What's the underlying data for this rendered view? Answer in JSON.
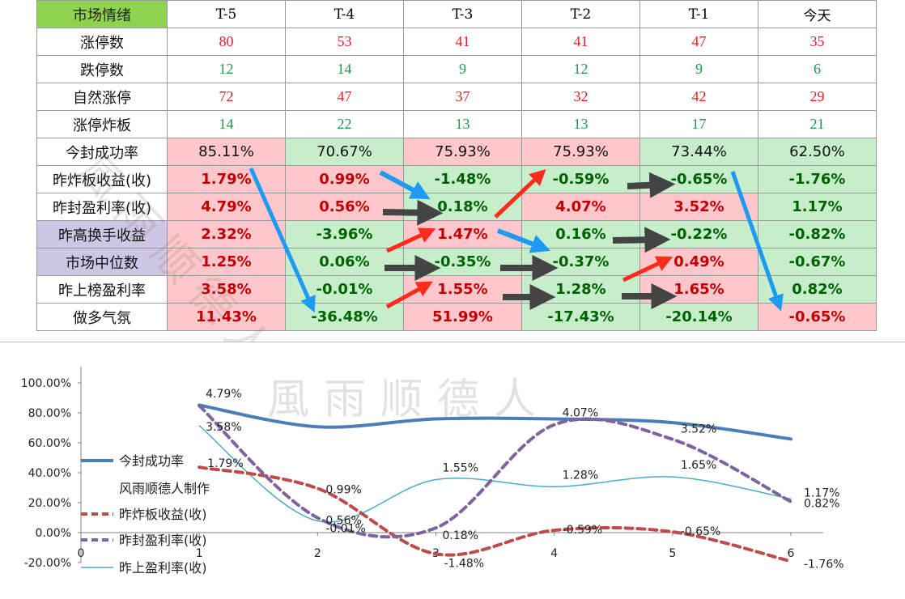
{
  "table": {
    "corner_label": "市场情绪",
    "columns": [
      "T-5",
      "T-4",
      "T-3",
      "T-2",
      "T-1",
      "今天"
    ],
    "rows": [
      {
        "label": "涨停数",
        "style": "num",
        "values": [
          "80",
          "53",
          "41",
          "41",
          "47",
          "35"
        ]
      },
      {
        "label": "跌停数",
        "style": "num",
        "values": [
          "12",
          "14",
          "9",
          "12",
          "9",
          "6"
        ]
      },
      {
        "label": "自然涨停",
        "style": "num",
        "values": [
          "72",
          "47",
          "37",
          "32",
          "42",
          "29"
        ]
      },
      {
        "label": "涨停炸板",
        "style": "num",
        "values": [
          "14",
          "22",
          "13",
          "13",
          "17",
          "21"
        ]
      },
      {
        "label": "今封成功率",
        "style": "plain",
        "values": [
          "85.11%",
          "70.67%",
          "75.93%",
          "75.93%",
          "73.44%",
          "62.50%"
        ]
      },
      {
        "label": "昨炸板收益(收)",
        "style": "bold",
        "values": [
          "1.79%",
          "0.99%",
          "-1.48%",
          "-0.59%",
          "-0.65%",
          "-1.76%"
        ]
      },
      {
        "label": "昨封盈利率(收)",
        "style": "bold",
        "values": [
          "4.79%",
          "0.56%",
          "0.18%",
          "4.07%",
          "3.52%",
          "1.17%"
        ]
      },
      {
        "label": "昨高换手收益",
        "style": "bold",
        "purple": true,
        "values": [
          "2.32%",
          "-3.96%",
          "1.47%",
          "0.16%",
          "-0.22%",
          "-0.82%"
        ]
      },
      {
        "label": "市场中位数",
        "style": "bold",
        "purple": true,
        "values": [
          "1.25%",
          "0.06%",
          "-0.35%",
          "-0.37%",
          "0.49%",
          "-0.67%"
        ]
      },
      {
        "label": "昨上榜盈利率",
        "style": "bold",
        "values": [
          "3.58%",
          "-0.01%",
          "1.55%",
          "1.28%",
          "1.65%",
          "0.82%"
        ]
      },
      {
        "label": "做多气氛",
        "style": "bold",
        "values": [
          "11.43%",
          "-36.48%",
          "51.99%",
          "-17.43%",
          "-20.14%",
          "-0.65%"
        ]
      }
    ]
  },
  "watermark": "風雨顺德人",
  "colors": {
    "pink_fill": "#ffc6cc",
    "green_fill": "#c7eecb",
    "purple_fill": "#cfc6e6",
    "header_fill": "#8fd24f",
    "arrow_blue": "#1e9bf0",
    "arrow_red": "#ff2a1a",
    "arrow_dark": "#444444"
  },
  "chart_data": {
    "type": "line",
    "x": [
      1,
      2,
      3,
      4,
      5,
      6
    ],
    "xlim": [
      0,
      6
    ],
    "ylim": [
      -20,
      100
    ],
    "y_ticks": [
      "-20.00%",
      "0.00%",
      "20.00%",
      "40.00%",
      "60.00%",
      "80.00%",
      "100.00%"
    ],
    "x_ticks": [
      "0",
      "1",
      "2",
      "3",
      "4",
      "5",
      "6"
    ],
    "smooth": true,
    "grid": false,
    "legend_position": "left",
    "legend_note": "风雨顺德人制作",
    "series": [
      {
        "name": "今封成功率",
        "color": "#4a7ebb",
        "dash": "solid",
        "width": 4,
        "values": [
          85.11,
          70.67,
          75.93,
          75.93,
          73.44,
          62.5
        ],
        "labels": []
      },
      {
        "name": "昨炸板收益(收)",
        "color": "#be4b48",
        "dash": "dashed",
        "width": 4,
        "values": [
          1.79,
          0.99,
          -1.48,
          -0.59,
          -0.65,
          -1.76
        ],
        "labels": [
          "1.79%",
          "0.99%",
          "-1.48%",
          "-0.59%",
          "-0.65%",
          "-1.76%"
        ]
      },
      {
        "name": "昨封盈利率(收)",
        "color": "#7e649e",
        "dash": "dashed",
        "width": 4,
        "values": [
          4.79,
          0.56,
          0.18,
          4.07,
          3.52,
          1.17
        ],
        "labels": [
          "4.79%",
          "0.56%",
          "0.18%",
          "4.07%",
          "3.52%",
          "1.17%"
        ]
      },
      {
        "name": "昨上盈利率(收)",
        "color": "#4bacc6",
        "dash": "solid",
        "width": 1.5,
        "values": [
          3.58,
          -0.01,
          1.55,
          1.28,
          1.65,
          0.82
        ],
        "labels": [
          "3.58%",
          "-0.01%",
          "1.55%",
          "1.28%",
          "1.65%",
          "0.82%"
        ]
      }
    ]
  }
}
